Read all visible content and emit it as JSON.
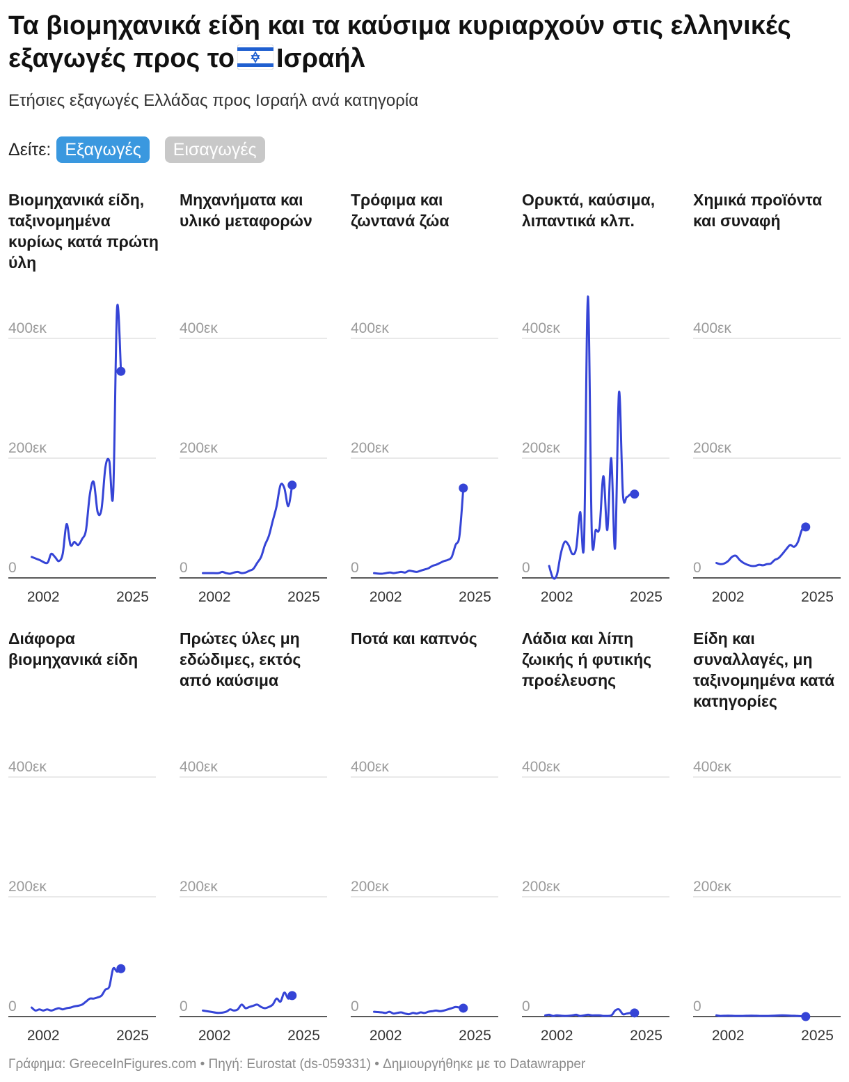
{
  "header": {
    "title_before_flag": "Τα βιομηχανικά είδη και τα καύσιμα κυριαρχούν στις ελληνικές εξαγωγές προς το",
    "flag_icon": "israel-flag-icon",
    "title_after_flag": "Ισραήλ",
    "subtitle": "Ετήσιες εξαγωγές Ελλάδας προς Ισραήλ ανά κατηγορία"
  },
  "toggle": {
    "label": "Δείτε:",
    "options": [
      "Εξαγωγές",
      "Εισαγωγές"
    ],
    "selected": "Εξαγωγές",
    "active_color": "#3a98df",
    "inactive_color": "#c8c8c8"
  },
  "footer": "Γράφημα: GreeceInFigures.com • Πηγή: Eurostat (ds-059331) • Δημιουργήθηκε με το Datawrapper",
  "chart_data": {
    "type": "line",
    "line_color": "#3544d6",
    "y_ticks": [
      0,
      200000,
      400000
    ],
    "y_tick_labels": [
      "0",
      "200εκ",
      "400εκ"
    ],
    "x_ticks": [
      2002,
      2025
    ],
    "x_tick_labels": [
      "2002",
      "2025"
    ],
    "xlim": [
      1993,
      2031
    ],
    "ylim": [
      0,
      400000
    ],
    "grid": true,
    "panels": [
      {
        "title": "Βιομηχανικά είδη, ταξινομημένα κυρίως κατά πρώτη ύλη",
        "points": [
          [
            1999,
            35000
          ],
          [
            2001,
            30000
          ],
          [
            2003,
            25000
          ],
          [
            2004,
            40000
          ],
          [
            2005,
            35000
          ],
          [
            2006,
            28000
          ],
          [
            2007,
            40000
          ],
          [
            2008,
            90000
          ],
          [
            2009,
            55000
          ],
          [
            2010,
            60000
          ],
          [
            2011,
            55000
          ],
          [
            2012,
            65000
          ],
          [
            2013,
            80000
          ],
          [
            2014,
            140000
          ],
          [
            2015,
            160000
          ],
          [
            2016,
            110000
          ],
          [
            2017,
            115000
          ],
          [
            2018,
            185000
          ],
          [
            2019,
            195000
          ],
          [
            2020,
            140000
          ],
          [
            2021,
            450000
          ],
          [
            2022,
            345000
          ]
        ]
      },
      {
        "title": "Μηχανήματα και υλικό μεταφορών",
        "points": [
          [
            1999,
            8000
          ],
          [
            2001,
            8000
          ],
          [
            2003,
            8000
          ],
          [
            2004,
            10000
          ],
          [
            2005,
            8000
          ],
          [
            2006,
            7000
          ],
          [
            2007,
            9000
          ],
          [
            2008,
            10000
          ],
          [
            2009,
            8000
          ],
          [
            2010,
            9000
          ],
          [
            2011,
            12000
          ],
          [
            2012,
            15000
          ],
          [
            2013,
            25000
          ],
          [
            2014,
            35000
          ],
          [
            2015,
            55000
          ],
          [
            2016,
            70000
          ],
          [
            2017,
            95000
          ],
          [
            2018,
            120000
          ],
          [
            2019,
            155000
          ],
          [
            2020,
            150000
          ],
          [
            2021,
            120000
          ],
          [
            2022,
            155000
          ]
        ]
      },
      {
        "title": "Τρόφιμα και ζωντανά ζώα",
        "points": [
          [
            1999,
            8000
          ],
          [
            2001,
            7000
          ],
          [
            2003,
            9000
          ],
          [
            2004,
            8000
          ],
          [
            2005,
            9000
          ],
          [
            2006,
            10000
          ],
          [
            2007,
            9000
          ],
          [
            2008,
            12000
          ],
          [
            2009,
            11000
          ],
          [
            2010,
            10000
          ],
          [
            2011,
            12000
          ],
          [
            2012,
            14000
          ],
          [
            2013,
            16000
          ],
          [
            2014,
            20000
          ],
          [
            2015,
            22000
          ],
          [
            2016,
            25000
          ],
          [
            2017,
            28000
          ],
          [
            2018,
            30000
          ],
          [
            2019,
            35000
          ],
          [
            2020,
            55000
          ],
          [
            2021,
            70000
          ],
          [
            2022,
            150000
          ]
        ]
      },
      {
        "title": "Ορυκτά, καύσιμα, λιπαντικά κλπ.",
        "points": [
          [
            2000,
            20000
          ],
          [
            2001,
            0
          ],
          [
            2002,
            5000
          ],
          [
            2003,
            40000
          ],
          [
            2004,
            60000
          ],
          [
            2005,
            55000
          ],
          [
            2006,
            40000
          ],
          [
            2007,
            50000
          ],
          [
            2008,
            110000
          ],
          [
            2009,
            60000
          ],
          [
            2010,
            470000
          ],
          [
            2011,
            75000
          ],
          [
            2012,
            80000
          ],
          [
            2013,
            85000
          ],
          [
            2014,
            170000
          ],
          [
            2015,
            80000
          ],
          [
            2016,
            200000
          ],
          [
            2017,
            50000
          ],
          [
            2018,
            310000
          ],
          [
            2019,
            140000
          ],
          [
            2020,
            135000
          ],
          [
            2021,
            140000
          ],
          [
            2022,
            140000
          ]
        ]
      },
      {
        "title": "Χημικά προϊόντα και συναφή",
        "points": [
          [
            1999,
            25000
          ],
          [
            2000,
            23000
          ],
          [
            2001,
            24000
          ],
          [
            2002,
            28000
          ],
          [
            2003,
            35000
          ],
          [
            2004,
            37000
          ],
          [
            2005,
            30000
          ],
          [
            2006,
            25000
          ],
          [
            2007,
            22000
          ],
          [
            2008,
            20000
          ],
          [
            2009,
            20000
          ],
          [
            2010,
            22000
          ],
          [
            2011,
            21000
          ],
          [
            2012,
            23000
          ],
          [
            2013,
            24000
          ],
          [
            2014,
            30000
          ],
          [
            2015,
            33000
          ],
          [
            2016,
            40000
          ],
          [
            2017,
            48000
          ],
          [
            2018,
            55000
          ],
          [
            2019,
            52000
          ],
          [
            2020,
            60000
          ],
          [
            2021,
            80000
          ],
          [
            2022,
            85000
          ]
        ]
      },
      {
        "title": "Διάφορα βιομηχανικά είδη",
        "points": [
          [
            1999,
            15000
          ],
          [
            2000,
            10000
          ],
          [
            2001,
            12000
          ],
          [
            2002,
            10000
          ],
          [
            2003,
            12000
          ],
          [
            2004,
            10000
          ],
          [
            2005,
            12000
          ],
          [
            2006,
            14000
          ],
          [
            2007,
            12000
          ],
          [
            2008,
            14000
          ],
          [
            2009,
            15000
          ],
          [
            2010,
            17000
          ],
          [
            2011,
            18000
          ],
          [
            2012,
            20000
          ],
          [
            2013,
            25000
          ],
          [
            2014,
            30000
          ],
          [
            2015,
            30000
          ],
          [
            2016,
            32000
          ],
          [
            2017,
            35000
          ],
          [
            2018,
            45000
          ],
          [
            2019,
            50000
          ],
          [
            2020,
            80000
          ],
          [
            2021,
            75000
          ],
          [
            2022,
            80000
          ]
        ]
      },
      {
        "title": "Πρώτες ύλες μη εδώδιμες, εκτός από καύσιμα",
        "points": [
          [
            1999,
            10000
          ],
          [
            2001,
            8000
          ],
          [
            2003,
            6000
          ],
          [
            2005,
            8000
          ],
          [
            2006,
            12000
          ],
          [
            2007,
            10000
          ],
          [
            2008,
            12000
          ],
          [
            2009,
            20000
          ],
          [
            2010,
            14000
          ],
          [
            2011,
            16000
          ],
          [
            2012,
            18000
          ],
          [
            2013,
            20000
          ],
          [
            2014,
            16000
          ],
          [
            2015,
            14000
          ],
          [
            2016,
            16000
          ],
          [
            2017,
            20000
          ],
          [
            2018,
            30000
          ],
          [
            2019,
            25000
          ],
          [
            2020,
            40000
          ],
          [
            2021,
            30000
          ],
          [
            2022,
            35000
          ]
        ]
      },
      {
        "title": "Ποτά και καπνός",
        "points": [
          [
            1999,
            8000
          ],
          [
            2001,
            7000
          ],
          [
            2002,
            6000
          ],
          [
            2003,
            8000
          ],
          [
            2004,
            5000
          ],
          [
            2005,
            6000
          ],
          [
            2006,
            7000
          ],
          [
            2007,
            5000
          ],
          [
            2008,
            4000
          ],
          [
            2009,
            6000
          ],
          [
            2010,
            5000
          ],
          [
            2011,
            7000
          ],
          [
            2012,
            6000
          ],
          [
            2013,
            8000
          ],
          [
            2014,
            9000
          ],
          [
            2015,
            10000
          ],
          [
            2016,
            9000
          ],
          [
            2017,
            10000
          ],
          [
            2018,
            12000
          ],
          [
            2019,
            14000
          ],
          [
            2020,
            16000
          ],
          [
            2021,
            15000
          ],
          [
            2022,
            14000
          ]
        ]
      },
      {
        "title": "Λάδια και λίπη ζωικής ή φυτικής προέλευσης",
        "points": [
          [
            1999,
            2000
          ],
          [
            2000,
            3000
          ],
          [
            2001,
            1000
          ],
          [
            2002,
            2000
          ],
          [
            2004,
            1000
          ],
          [
            2006,
            2000
          ],
          [
            2007,
            3000
          ],
          [
            2008,
            1000
          ],
          [
            2010,
            3000
          ],
          [
            2011,
            2000
          ],
          [
            2013,
            2000
          ],
          [
            2014,
            1000
          ],
          [
            2016,
            2000
          ],
          [
            2017,
            10000
          ],
          [
            2018,
            12000
          ],
          [
            2019,
            4000
          ],
          [
            2020,
            5000
          ],
          [
            2021,
            6000
          ],
          [
            2022,
            6000
          ]
        ]
      },
      {
        "title": "Είδη και συναλλαγές, μη ταξινομημένα κατά κατηγορίες",
        "points": [
          [
            1999,
            2000
          ],
          [
            2000,
            1000
          ],
          [
            2002,
            1500
          ],
          [
            2004,
            1000
          ],
          [
            2006,
            1200
          ],
          [
            2008,
            1500
          ],
          [
            2010,
            1200
          ],
          [
            2012,
            1000
          ],
          [
            2014,
            1500
          ],
          [
            2016,
            2000
          ],
          [
            2018,
            1500
          ],
          [
            2020,
            1000
          ],
          [
            2022,
            0
          ]
        ]
      }
    ]
  }
}
